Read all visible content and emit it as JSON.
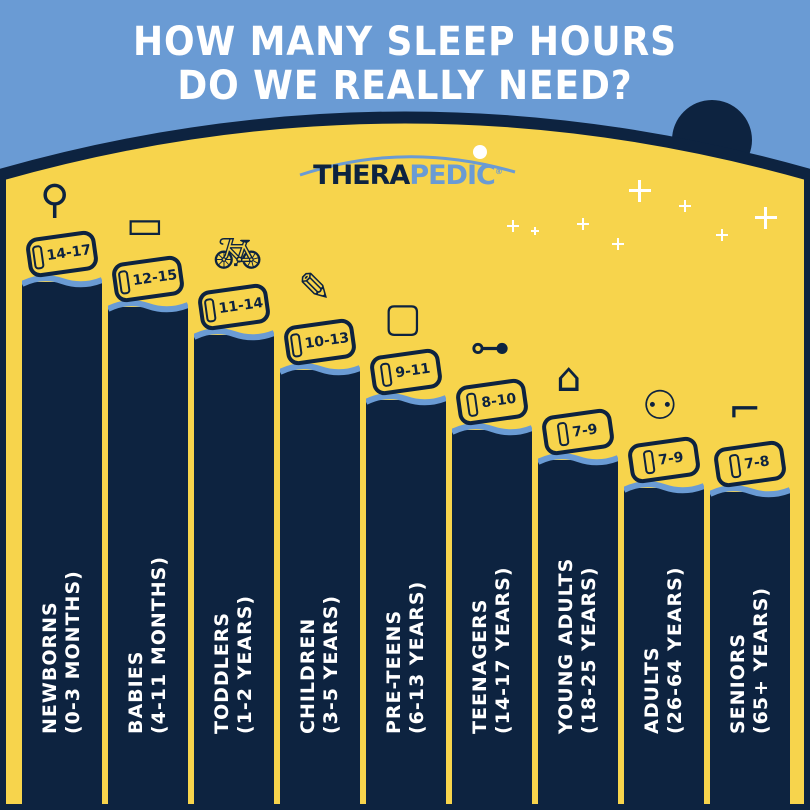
{
  "title_line1": "HOW MANY SLEEP HOURS",
  "title_line2": "DO WE REALLY NEED?",
  "logo": {
    "part1": "THERA",
    "part2": "PEDIC",
    "mark": "®"
  },
  "colors": {
    "sky": "#6a9bd4",
    "yellow": "#f7d44c",
    "navy": "#0d2340",
    "wave": "#6a9bd4"
  },
  "chart_data": {
    "type": "bar",
    "categories": [
      {
        "name": "NEWBORNS",
        "age": "(0-3 MONTHS)",
        "icon": "pacifier-icon"
      },
      {
        "name": "BABIES",
        "age": "(4-11 MONTHS)",
        "icon": "baby-bottle-icon"
      },
      {
        "name": "TODDLERS",
        "age": "(1-2 YEARS)",
        "icon": "bicycle-icon"
      },
      {
        "name": "CHILDREN",
        "age": "(3-5 YEARS)",
        "icon": "crayon-icon"
      },
      {
        "name": "PRE-TEENS",
        "age": "(6-13 YEARS)",
        "icon": "backpack-icon"
      },
      {
        "name": "TEENAGERS",
        "age": "(14-17 YEARS)",
        "icon": "game-controller-icon"
      },
      {
        "name": "YOUNG ADULTS",
        "age": "(18-25 YEARS)",
        "icon": "graduation-cap-icon"
      },
      {
        "name": "ADULTS",
        "age": "(26-64 YEARS)",
        "icon": "suit-icon"
      },
      {
        "name": "SENIORS",
        "age": "(65+ YEARS)",
        "icon": "cane-icon"
      }
    ],
    "values": [
      "14-17",
      "12-15",
      "11-14",
      "10-13",
      "9-11",
      "8-10",
      "7-9",
      "7-9",
      "7-8"
    ],
    "ranges": [
      [
        14,
        17
      ],
      [
        12,
        15
      ],
      [
        11,
        14
      ],
      [
        10,
        13
      ],
      [
        9,
        11
      ],
      [
        8,
        10
      ],
      [
        7,
        9
      ],
      [
        7,
        9
      ],
      [
        7,
        8
      ]
    ]
  }
}
